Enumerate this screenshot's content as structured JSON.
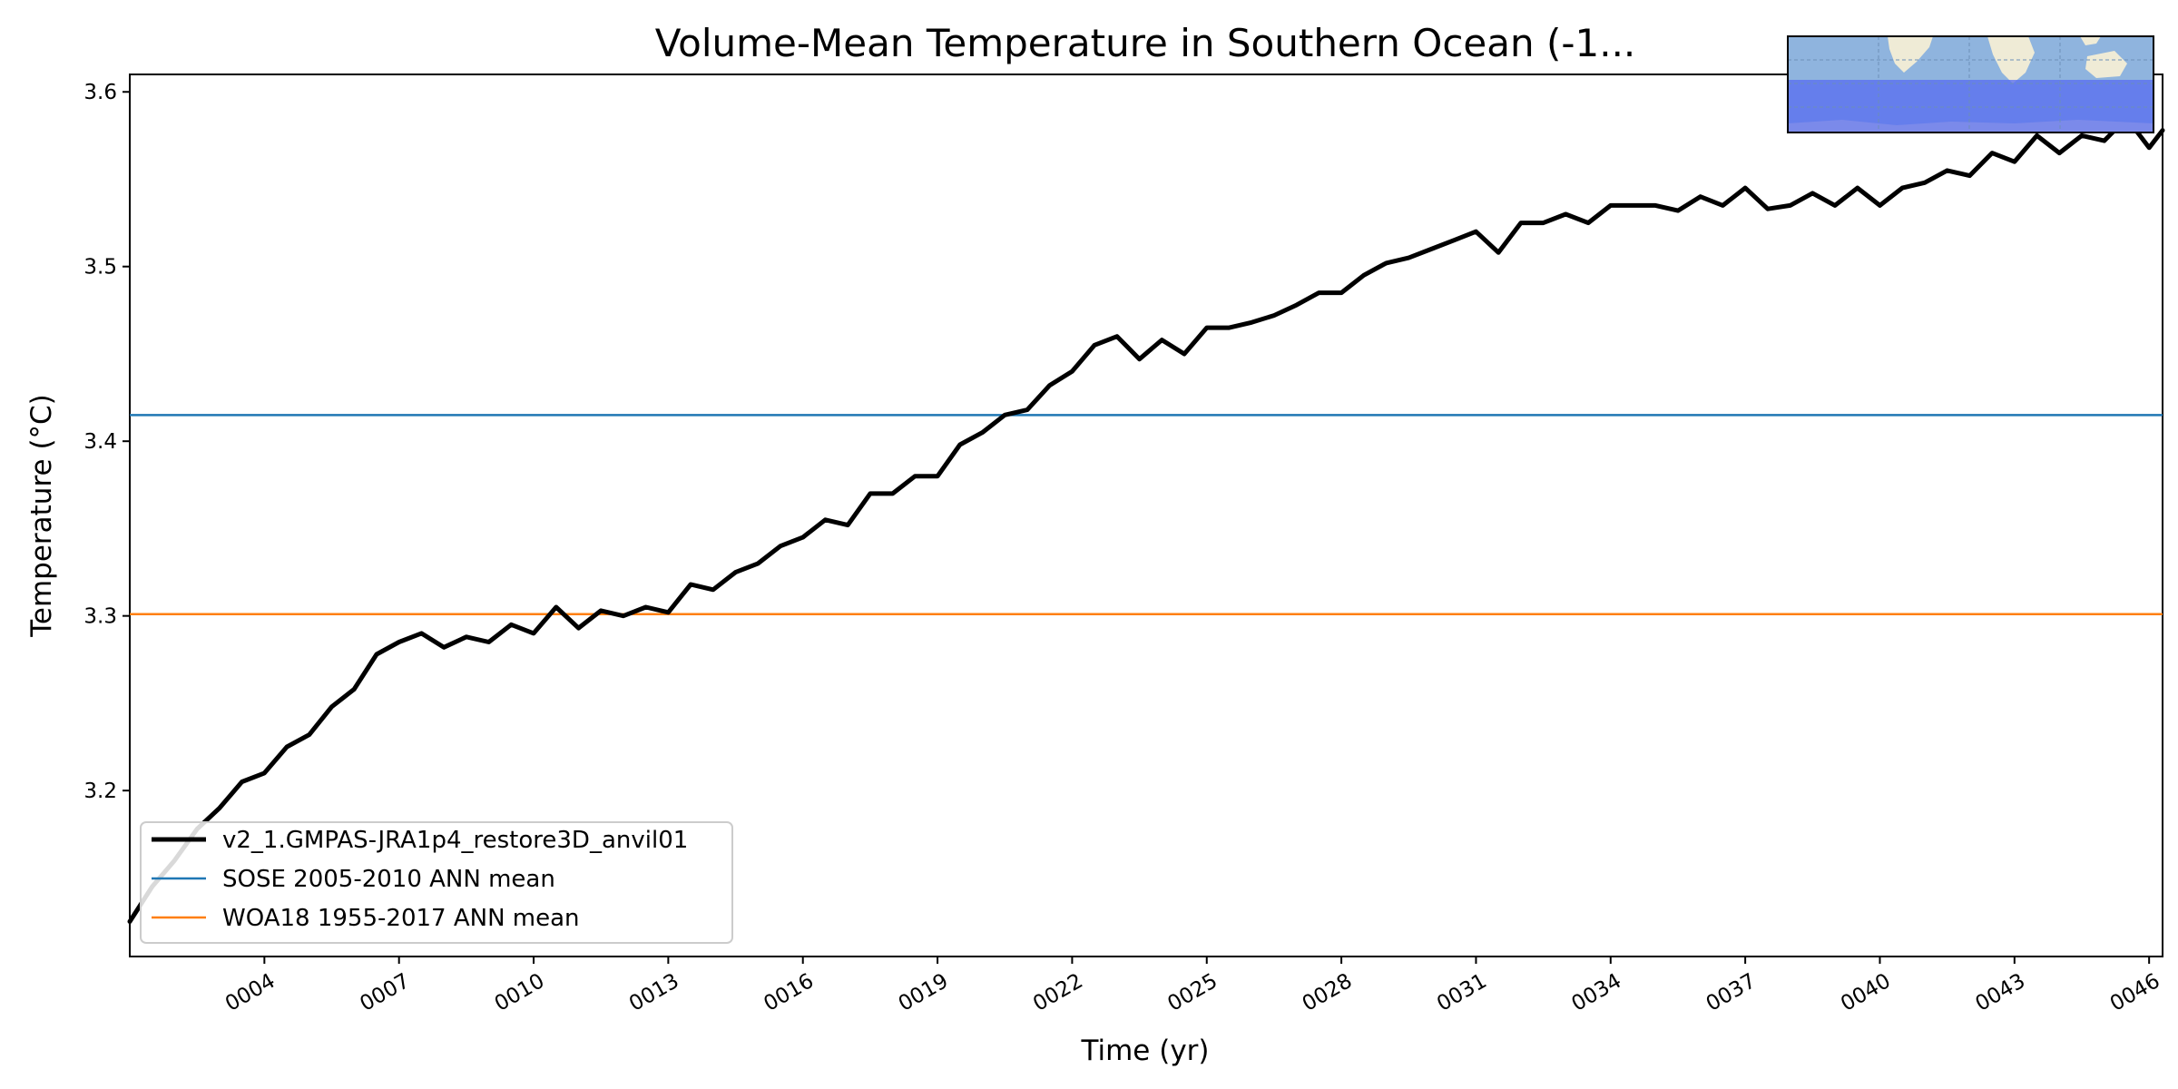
{
  "chart_data": {
    "type": "line",
    "title": "Volume-Mean Temperature in Southern Ocean (-1...",
    "xlabel": "Time (yr)",
    "ylabel": "Temperature (°C)",
    "xlim": [
      1,
      46.3
    ],
    "ylim": [
      3.105,
      3.61
    ],
    "x_ticks": [
      "0004",
      "0007",
      "0010",
      "0013",
      "0016",
      "0019",
      "0022",
      "0025",
      "0028",
      "0031",
      "0034",
      "0037",
      "0040",
      "0043",
      "0046"
    ],
    "x_tick_values": [
      4,
      7,
      10,
      13,
      16,
      19,
      22,
      25,
      28,
      31,
      34,
      37,
      40,
      43,
      46
    ],
    "y_ticks": [
      "3.2",
      "3.3",
      "3.4",
      "3.5",
      "3.6"
    ],
    "y_tick_values": [
      3.2,
      3.3,
      3.4,
      3.5,
      3.6
    ],
    "grid": false,
    "legend_position": "lower-left",
    "series": [
      {
        "name": "v2_1.GMPAS-JRA1p4_restore3D_anvil01",
        "color": "#000000",
        "x": [
          1.0,
          1.5,
          2.0,
          2.5,
          3.0,
          3.5,
          4.0,
          4.5,
          5.0,
          5.5,
          6.0,
          6.5,
          7.0,
          7.5,
          8.0,
          8.5,
          9.0,
          9.5,
          10.0,
          10.5,
          11.0,
          11.5,
          12.0,
          12.5,
          13.0,
          13.5,
          14.0,
          14.5,
          15.0,
          15.5,
          16.0,
          16.5,
          17.0,
          17.5,
          18.0,
          18.5,
          19.0,
          19.5,
          20.0,
          20.5,
          21.0,
          21.5,
          22.0,
          22.5,
          23.0,
          23.5,
          24.0,
          24.5,
          25.0,
          25.5,
          26.0,
          26.5,
          27.0,
          27.5,
          28.0,
          28.5,
          29.0,
          29.5,
          30.0,
          30.5,
          31.0,
          31.5,
          32.0,
          32.5,
          33.0,
          33.5,
          34.0,
          34.5,
          35.0,
          35.5,
          36.0,
          36.5,
          37.0,
          37.5,
          38.0,
          38.5,
          39.0,
          39.5,
          40.0,
          40.5,
          41.0,
          41.5,
          42.0,
          42.5,
          43.0,
          43.5,
          44.0,
          44.5,
          45.0,
          45.5,
          46.0,
          46.3
        ],
        "y": [
          3.125,
          3.145,
          3.16,
          3.178,
          3.19,
          3.205,
          3.21,
          3.225,
          3.232,
          3.248,
          3.258,
          3.278,
          3.285,
          3.29,
          3.282,
          3.288,
          3.285,
          3.295,
          3.29,
          3.305,
          3.293,
          3.303,
          3.3,
          3.305,
          3.302,
          3.318,
          3.315,
          3.325,
          3.33,
          3.34,
          3.345,
          3.355,
          3.352,
          3.37,
          3.37,
          3.38,
          3.38,
          3.398,
          3.405,
          3.415,
          3.418,
          3.432,
          3.44,
          3.455,
          3.46,
          3.447,
          3.458,
          3.45,
          3.465,
          3.465,
          3.468,
          3.472,
          3.478,
          3.485,
          3.485,
          3.495,
          3.502,
          3.505,
          3.51,
          3.515,
          3.52,
          3.508,
          3.525,
          3.525,
          3.53,
          3.525,
          3.535,
          3.535,
          3.535,
          3.532,
          3.54,
          3.535,
          3.545,
          3.533,
          3.535,
          3.542,
          3.535,
          3.545,
          3.535,
          3.545,
          3.548,
          3.555,
          3.552,
          3.565,
          3.56,
          3.575,
          3.565,
          3.575,
          3.572,
          3.585,
          3.568,
          3.578
        ]
      },
      {
        "name": "SOSE 2005-2010 ANN mean",
        "color": "#1f77b4",
        "constant": 3.415
      },
      {
        "name": "WOA18 1955-2017 ANN mean",
        "color": "#ff7f0e",
        "constant": 3.301
      }
    ],
    "inset_map": {
      "ocean_color": "#8fb4de",
      "land_color": "#efebd6",
      "region_color": "#5a6ef0"
    }
  }
}
